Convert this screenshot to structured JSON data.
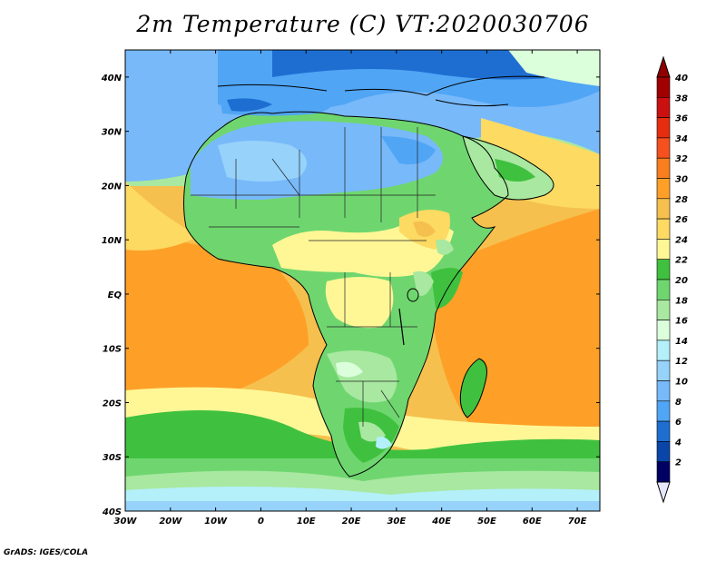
{
  "title": "2m Temperature (C) VT:2020030706",
  "credit": "GrADS: IGES/COLA",
  "map": {
    "lon_range": [
      -30,
      75
    ],
    "lat_range": [
      -40,
      45
    ],
    "lat_ticks": [
      "40N",
      "30N",
      "20N",
      "10N",
      "EQ",
      "10S",
      "20S",
      "30S",
      "40S"
    ],
    "lon_ticks": [
      "30W",
      "20W",
      "10W",
      "0",
      "10E",
      "20E",
      "30E",
      "40E",
      "50E",
      "60E",
      "70E"
    ]
  },
  "colorbar": {
    "levels": [
      "40",
      "38",
      "36",
      "34",
      "32",
      "30",
      "28",
      "26",
      "24",
      "22",
      "20",
      "18",
      "16",
      "14",
      "12",
      "10",
      "8",
      "6",
      "4",
      "2"
    ],
    "colors": [
      "#a00000",
      "#cc1010",
      "#e62d0f",
      "#f5501e",
      "#fa7d1e",
      "#fea028",
      "#f6c04e",
      "#fdda62",
      "#fff796",
      "#3fc13f",
      "#6fd66f",
      "#a8e8a0",
      "#dbffdb",
      "#b4f0fa",
      "#96d2fa",
      "#78b9fa",
      "#50a5f5",
      "#1e6ed2",
      "#0a46aa",
      "#000064"
    ],
    "top_color": "#900000",
    "bottom_color": "#e6e6ff"
  }
}
